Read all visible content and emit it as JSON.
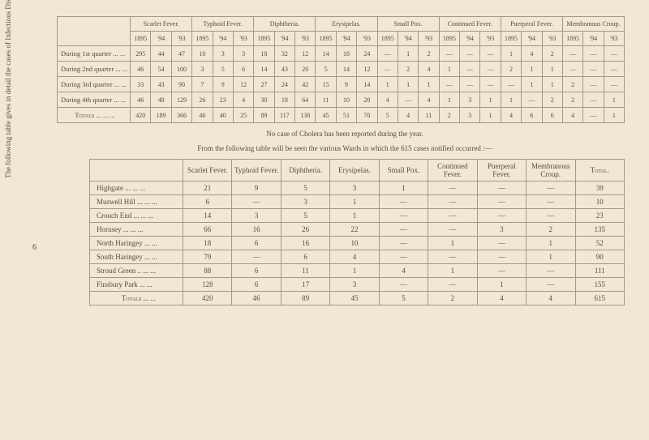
{
  "sideText": "The following table gives in detail the cases of Infectious Disease as reported for each quarter of the year, and a comparison with other years—",
  "pageNum": "6",
  "table1": {
    "groupHeaders": [
      "Scarlet Fever.",
      "Typhoid Fever.",
      "Diphtheria.",
      "Erysipelas.",
      "Small Pox.",
      "Continued Fever.",
      "Puerperal Fever.",
      "Membranous Croup."
    ],
    "yearHeaders": [
      "1895",
      "'94",
      "'93",
      "1895",
      "'94",
      "'93",
      "1895",
      "'94",
      "'93",
      "1895",
      "'94",
      "'93",
      "1895",
      "'94",
      "'93",
      "1895",
      "'94",
      "'93",
      "1895",
      "'94",
      "'93",
      "1895",
      "'94",
      "'93"
    ],
    "rows": [
      {
        "label": "During 1st quarter ... ...",
        "cells": [
          "295",
          "44",
          "47",
          "10",
          "3",
          "3",
          "18",
          "32",
          "12",
          "14",
          "18",
          "24",
          "—",
          "1",
          "2",
          "—",
          "—",
          "—",
          "1",
          "4",
          "2",
          "—",
          "—",
          "—"
        ]
      },
      {
        "label": "During 2nd quarter ... ...",
        "cells": [
          "46",
          "54",
          "100",
          "3",
          "5",
          "6",
          "14",
          "43",
          "20",
          "5",
          "14",
          "12",
          "—",
          "2",
          "4",
          "1",
          "—",
          "—",
          "2",
          "1",
          "1",
          "—",
          "—",
          "—"
        ]
      },
      {
        "label": "During 3rd quarter ... ...",
        "cells": [
          "33",
          "43",
          "90",
          "7",
          "9",
          "12",
          "27",
          "24",
          "42",
          "15",
          "9",
          "14",
          "1",
          "1",
          "1",
          "—",
          "—",
          "—",
          "—",
          "1",
          "1",
          "2",
          "—",
          "—"
        ]
      },
      {
        "label": "During 4th quarter ... ...",
        "cells": [
          "46",
          "48",
          "129",
          "26",
          "23",
          "4",
          "30",
          "18",
          "64",
          "11",
          "10",
          "20",
          "4",
          "—",
          "4",
          "1",
          "3",
          "1",
          "1",
          "—",
          "2",
          "2",
          "—",
          "1"
        ]
      }
    ],
    "totals": {
      "label": "Totals   ...  ...  ...",
      "cells": [
        "420",
        "189",
        "366",
        "46",
        "40",
        "25",
        "89",
        "117",
        "138",
        "45",
        "51",
        "70",
        "5",
        "4",
        "11",
        "2",
        "3",
        "1",
        "4",
        "6",
        "6",
        "4",
        "—",
        "1"
      ]
    }
  },
  "caption1": "No case of Cholera has been reported during the year.",
  "caption2": "From the following table will be seen the various Wards in which the 615 cases notified occurred :—",
  "table2": {
    "headers": [
      "",
      "Scarlet Fever.",
      "Typhoid Fever.",
      "Diphtheria.",
      "Erysipelas.",
      "Small Pox.",
      "Continued Fever.",
      "Puerperal Fever.",
      "Membranous Croup.",
      "Total."
    ],
    "rows": [
      {
        "label": "Highgate     ...   ...   ...",
        "cells": [
          "21",
          "9",
          "5",
          "3",
          "1",
          "—",
          "—",
          "—",
          "39"
        ]
      },
      {
        "label": "Muswell Hill ...   ...   ...",
        "cells": [
          "6",
          "—",
          "3",
          "1",
          "—",
          "—",
          "—",
          "—",
          "10"
        ]
      },
      {
        "label": "Crouch End ...   ...   ...",
        "cells": [
          "14",
          "3",
          "5",
          "1",
          "—",
          "—",
          "—",
          "—",
          "23"
        ]
      },
      {
        "label": "Hornsey       ...   ...   ...",
        "cells": [
          "66",
          "16",
          "26",
          "22",
          "—",
          "—",
          "3",
          "2",
          "135"
        ]
      },
      {
        "label": "North Haringey   ...   ...",
        "cells": [
          "18",
          "6",
          "16",
          "10",
          "—",
          "1",
          "—",
          "1",
          "52"
        ]
      },
      {
        "label": "South Haringey   ...   ...",
        "cells": [
          "79",
          "—",
          "6",
          "4",
          "—",
          "—",
          "—",
          "1",
          "90"
        ]
      },
      {
        "label": "Stroud Green ..   ...   ...",
        "cells": [
          "88",
          "6",
          "11",
          "1",
          "4",
          "1",
          "—",
          "—",
          "111"
        ]
      },
      {
        "label": "Finsbury Park     ...   ...",
        "cells": [
          "128",
          "6",
          "17",
          "3",
          "—",
          "—",
          "1",
          "—",
          "155"
        ]
      }
    ],
    "totals": {
      "label": "Totals   ...   ...",
      "cells": [
        "420",
        "46",
        "89",
        "45",
        "5",
        "2",
        "4",
        "4",
        "615"
      ]
    }
  }
}
